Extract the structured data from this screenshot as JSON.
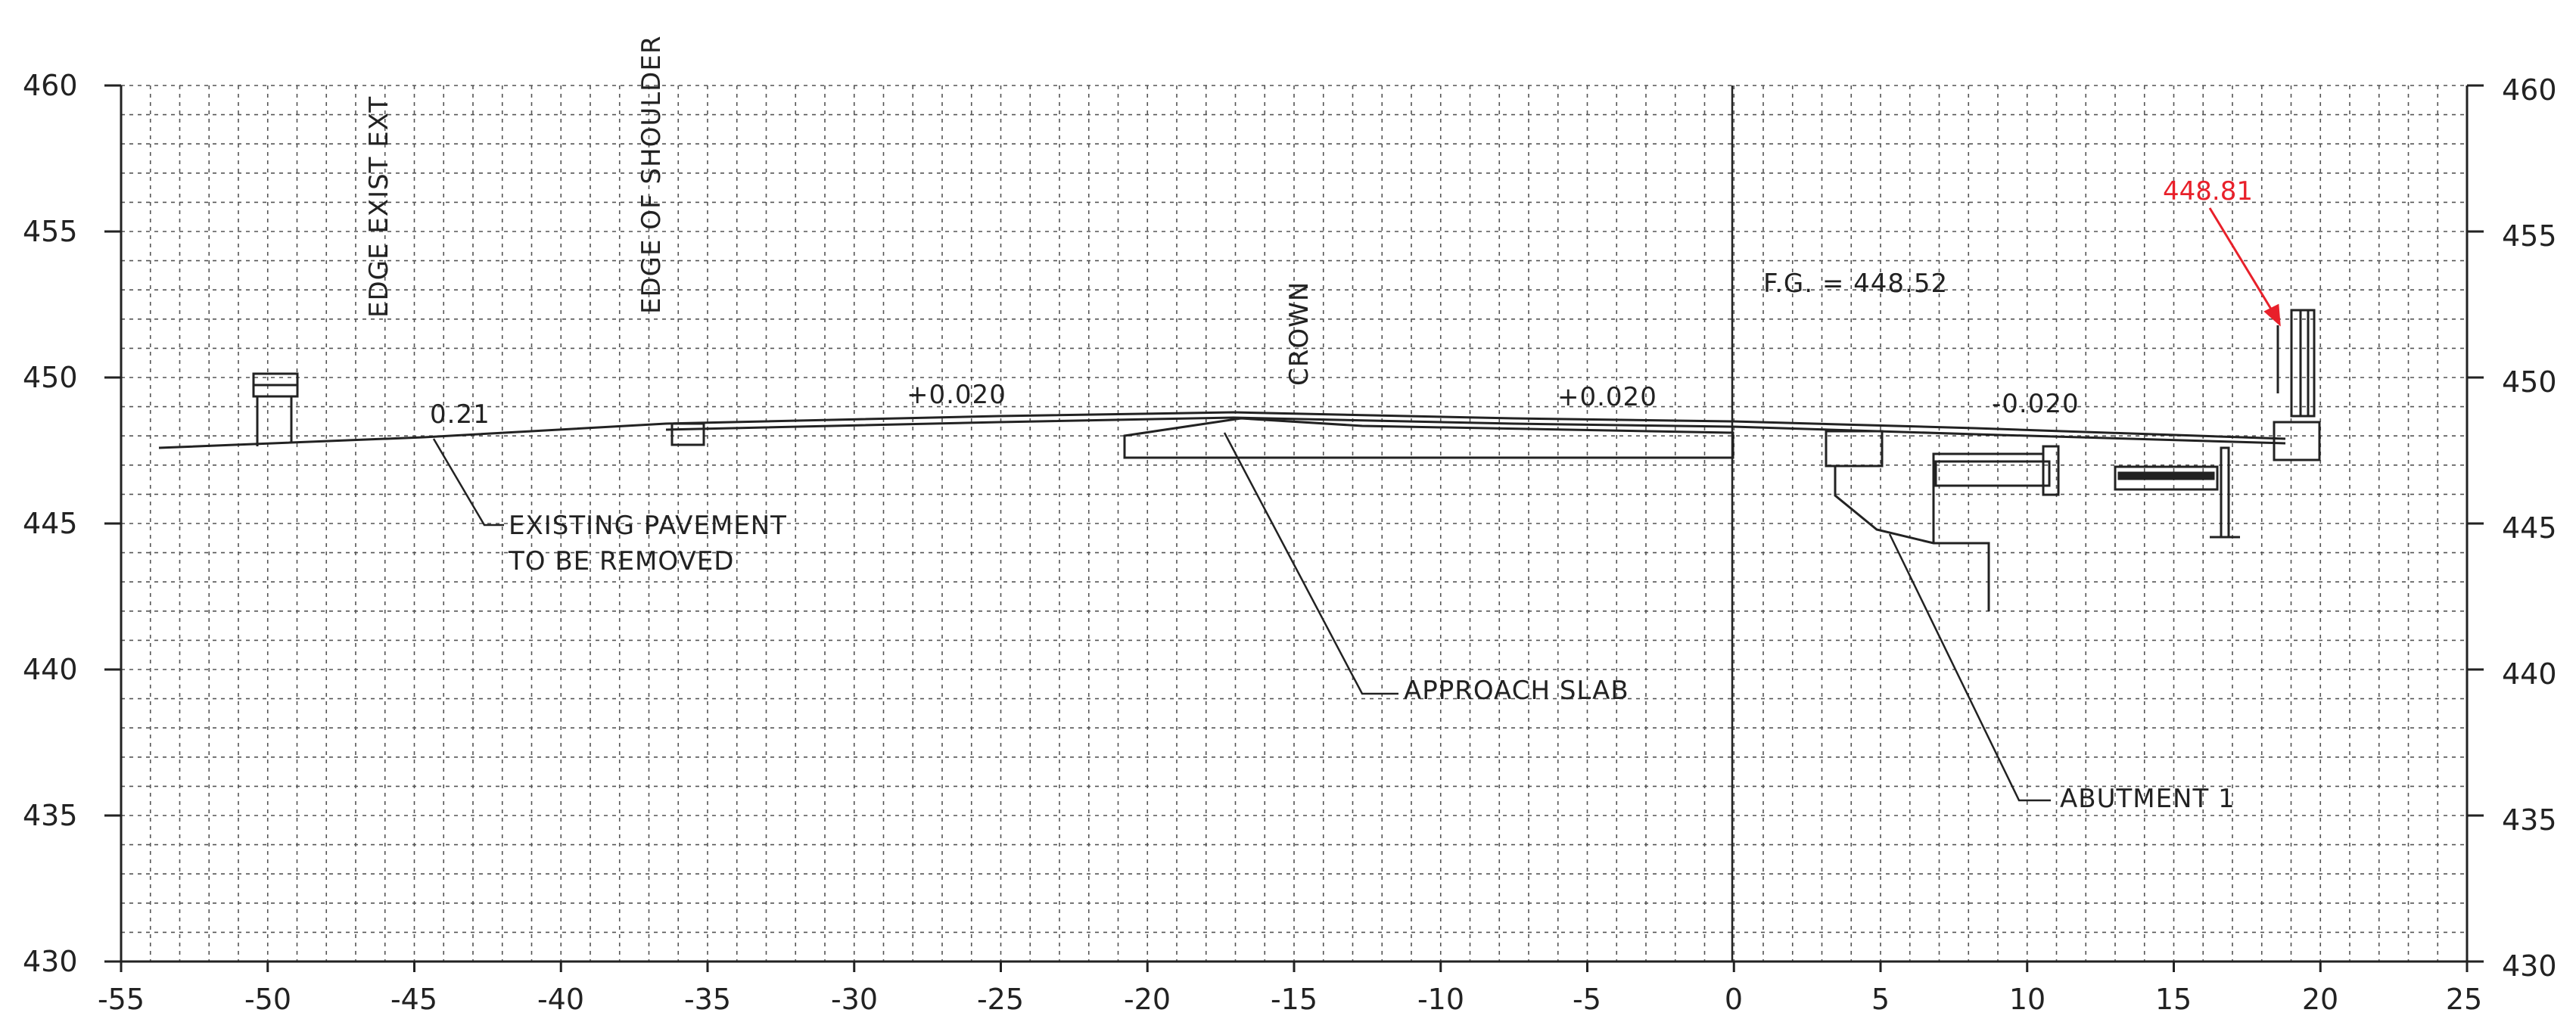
{
  "axes": {
    "x_ticks": [
      "-55",
      "-50",
      "-45",
      "-40",
      "-35",
      "-30",
      "-25",
      "-20",
      "-15",
      "-10",
      "-5",
      "0",
      "5",
      "10",
      "15",
      "20",
      "25"
    ],
    "y_ticks": [
      "460",
      "455",
      "450",
      "445",
      "440",
      "435",
      "430"
    ],
    "x_range": [
      -55,
      25
    ],
    "y_range": [
      430,
      460
    ],
    "grid": true
  },
  "labels": {
    "edge_exist": "EDGE EXIST EXT",
    "edge_shoulder": "EDGE OF SHOULDER",
    "crown": "CROWN",
    "slope_left": "+0.020",
    "slope_mid": "+0.020",
    "slope_right": "-0.020",
    "slope_small": "0.21",
    "fg": "F.G. = 448.52",
    "elevation": "448.81",
    "existing_1": "EXISTING PAVEMENT",
    "existing_2": "TO BE REMOVED",
    "approach": "APPROACH SLAB",
    "abutment": "ABUTMENT 1"
  },
  "colors": {
    "ink": "#222222",
    "grid": "#555555",
    "highlight": "#e8202a"
  }
}
